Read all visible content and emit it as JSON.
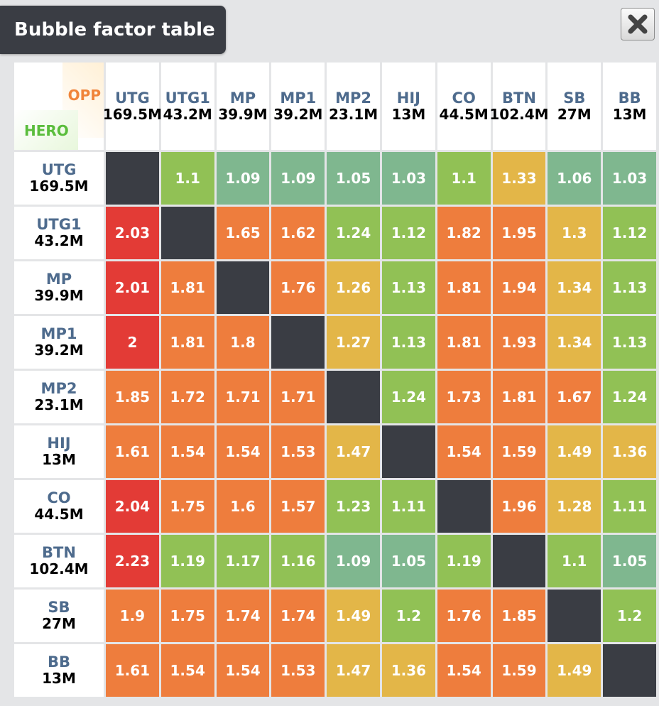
{
  "title": "Bubble factor table",
  "close_label": "close",
  "corner": {
    "opp_label": "OPP",
    "hero_label": "HERO"
  },
  "positions": [
    {
      "name": "UTG",
      "stack": "169.5M"
    },
    {
      "name": "UTG1",
      "stack": "43.2M"
    },
    {
      "name": "MP",
      "stack": "39.9M"
    },
    {
      "name": "MP1",
      "stack": "39.2M"
    },
    {
      "name": "MP2",
      "stack": "23.1M"
    },
    {
      "name": "HIJ",
      "stack": "13M"
    },
    {
      "name": "CO",
      "stack": "44.5M"
    },
    {
      "name": "BTN",
      "stack": "102.4M"
    },
    {
      "name": "SB",
      "stack": "27M"
    },
    {
      "name": "BB",
      "stack": "13M"
    }
  ],
  "colors": {
    "self": "#3a3d44",
    "red": "#e33b36",
    "orange": "#ee7d3d",
    "yellow": "#e3b648",
    "lightgreen": "#91c155",
    "teal": "#7fb78f"
  },
  "rows": [
    [
      null,
      "1.1",
      "1.09",
      "1.09",
      "1.05",
      "1.03",
      "1.1",
      "1.33",
      "1.06",
      "1.03"
    ],
    [
      "2.03",
      null,
      "1.65",
      "1.62",
      "1.24",
      "1.12",
      "1.82",
      "1.95",
      "1.3",
      "1.12"
    ],
    [
      "2.01",
      "1.81",
      null,
      "1.76",
      "1.26",
      "1.13",
      "1.81",
      "1.94",
      "1.34",
      "1.13"
    ],
    [
      "2",
      "1.81",
      "1.8",
      null,
      "1.27",
      "1.13",
      "1.81",
      "1.93",
      "1.34",
      "1.13"
    ],
    [
      "1.85",
      "1.72",
      "1.71",
      "1.71",
      null,
      "1.24",
      "1.73",
      "1.81",
      "1.67",
      "1.24"
    ],
    [
      "1.61",
      "1.54",
      "1.54",
      "1.53",
      "1.47",
      null,
      "1.54",
      "1.59",
      "1.49",
      "1.36"
    ],
    [
      "2.04",
      "1.75",
      "1.6",
      "1.57",
      "1.23",
      "1.11",
      null,
      "1.96",
      "1.28",
      "1.11"
    ],
    [
      "2.23",
      "1.19",
      "1.17",
      "1.16",
      "1.09",
      "1.05",
      "1.19",
      null,
      "1.1",
      "1.05"
    ],
    [
      "1.9",
      "1.75",
      "1.74",
      "1.74",
      "1.49",
      "1.2",
      "1.76",
      "1.85",
      null,
      "1.2"
    ],
    [
      "1.61",
      "1.54",
      "1.54",
      "1.53",
      "1.47",
      "1.36",
      "1.54",
      "1.59",
      "1.49",
      null
    ]
  ],
  "cell_colors": [
    [
      "self",
      "lightgreen",
      "teal",
      "teal",
      "teal",
      "teal",
      "lightgreen",
      "yellow",
      "teal",
      "teal"
    ],
    [
      "red",
      "self",
      "orange",
      "orange",
      "lightgreen",
      "lightgreen",
      "orange",
      "orange",
      "yellow",
      "lightgreen"
    ],
    [
      "red",
      "orange",
      "self",
      "orange",
      "yellow",
      "lightgreen",
      "orange",
      "orange",
      "yellow",
      "lightgreen"
    ],
    [
      "red",
      "orange",
      "orange",
      "self",
      "yellow",
      "lightgreen",
      "orange",
      "orange",
      "yellow",
      "lightgreen"
    ],
    [
      "orange",
      "orange",
      "orange",
      "orange",
      "self",
      "lightgreen",
      "orange",
      "orange",
      "orange",
      "lightgreen"
    ],
    [
      "orange",
      "orange",
      "orange",
      "orange",
      "yellow",
      "self",
      "orange",
      "orange",
      "yellow",
      "yellow"
    ],
    [
      "red",
      "orange",
      "orange",
      "orange",
      "lightgreen",
      "lightgreen",
      "self",
      "orange",
      "yellow",
      "lightgreen"
    ],
    [
      "red",
      "lightgreen",
      "lightgreen",
      "lightgreen",
      "teal",
      "teal",
      "lightgreen",
      "self",
      "lightgreen",
      "teal"
    ],
    [
      "orange",
      "orange",
      "orange",
      "orange",
      "yellow",
      "lightgreen",
      "orange",
      "orange",
      "self",
      "lightgreen"
    ],
    [
      "orange",
      "orange",
      "orange",
      "orange",
      "yellow",
      "yellow",
      "orange",
      "orange",
      "yellow",
      "self"
    ]
  ]
}
